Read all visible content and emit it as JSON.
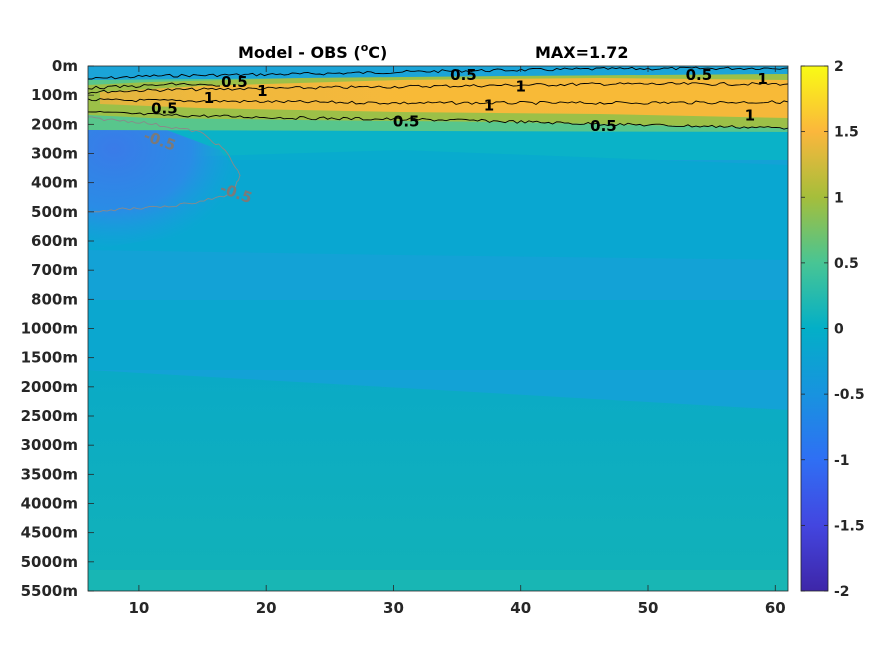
{
  "chart_data": {
    "type": "heatmap",
    "title": "Model - OBS (",
    "title_sup": "o",
    "title_unit": "C)",
    "max_label": "MAX=1.72",
    "x_ticks": [
      10,
      20,
      30,
      40,
      50,
      60
    ],
    "x_range": [
      6,
      61
    ],
    "y_ticks": [
      "0m",
      "100m",
      "200m",
      "300m",
      "400m",
      "500m",
      "600m",
      "700m",
      "800m",
      "1000m",
      "1500m",
      "2000m",
      "2500m",
      "3000m",
      "3500m",
      "4000m",
      "4500m",
      "5000m",
      "5500m"
    ],
    "colorbar": {
      "range": [
        -2,
        2
      ],
      "ticks": [
        "2",
        "1.5",
        "1",
        "0.5",
        "0",
        "-0.5",
        "-1",
        "-1.5",
        "-2"
      ],
      "colormap": "parula"
    },
    "contour_labels": [
      {
        "text": "0.5",
        "value": 0.5,
        "x": 17.5,
        "level": 0.55
      },
      {
        "text": "1",
        "value": 1,
        "x": 15.5,
        "level": 1.1
      },
      {
        "text": "1",
        "value": 1,
        "x": 19.7,
        "level": 0.85
      },
      {
        "text": "0.5",
        "value": 0.5,
        "x": 12,
        "level": 1.45
      },
      {
        "text": "0.5",
        "value": 0.5,
        "x": 35.5,
        "level": 0.3
      },
      {
        "text": "1",
        "value": 1,
        "x": 40,
        "level": 0.7
      },
      {
        "text": "1",
        "value": 1,
        "x": 37.5,
        "level": 1.35
      },
      {
        "text": "0.5",
        "value": 0.5,
        "x": 31,
        "level": 1.9
      },
      {
        "text": "0.5",
        "value": 0.5,
        "x": 54,
        "level": 0.3
      },
      {
        "text": "1",
        "value": 1,
        "x": 59,
        "level": 0.45
      },
      {
        "text": "1",
        "value": 1,
        "x": 58,
        "level": 1.7
      },
      {
        "text": "0.5",
        "value": 0.5,
        "x": 46.5,
        "level": 2.05
      },
      {
        "text": "-0.5",
        "value": -0.5,
        "x": 11.5,
        "level": 2.55
      },
      {
        "text": "-0.5",
        "value": -0.5,
        "x": 17.5,
        "level": 4.35
      }
    ]
  },
  "colors": {
    "text": "#262626",
    "contour_pos": "#000000",
    "contour_neg": "#8a8a8a"
  }
}
